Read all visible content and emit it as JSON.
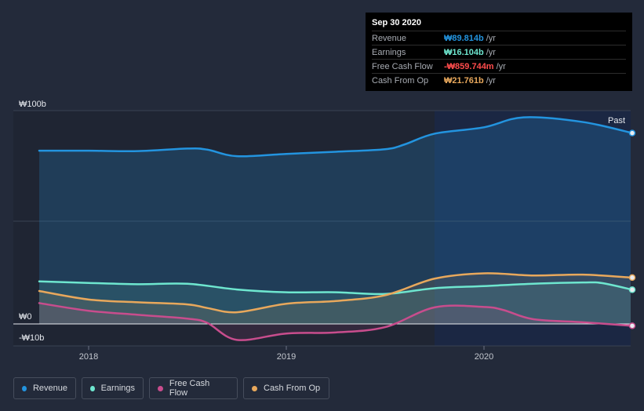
{
  "tooltip": {
    "date": "Sep 30 2020",
    "rows": [
      {
        "label": "Revenue",
        "value": "₩89.814b",
        "unit": "/yr",
        "color": "#2394df"
      },
      {
        "label": "Earnings",
        "value": "₩16.104b",
        "unit": "/yr",
        "color": "#6ee6cf"
      },
      {
        "label": "Free Cash Flow",
        "value": "-₩859.744m",
        "unit": "/yr",
        "color": "#ff4c4c"
      },
      {
        "label": "Cash From Op",
        "value": "₩21.761b",
        "unit": "/yr",
        "color": "#e8a85c"
      }
    ]
  },
  "legend": {
    "items": [
      {
        "label": "Revenue",
        "color": "#2394df"
      },
      {
        "label": "Earnings",
        "color": "#6ee6cf"
      },
      {
        "label": "Free Cash Flow",
        "color": "#c84d8d"
      },
      {
        "label": "Cash From Op",
        "color": "#e8a85c"
      }
    ]
  },
  "chart_data": {
    "type": "area",
    "y_unit": "KRW billions",
    "ylim": [
      -10,
      100
    ],
    "xlim": [
      2017.6,
      2020.8
    ],
    "y_tick_labels": [
      {
        "value": 100,
        "label": "₩100b"
      },
      {
        "value": 0,
        "label": "₩0"
      },
      {
        "value": -10,
        "label": "-₩10b"
      }
    ],
    "x_tick_labels": [
      {
        "value": 2018,
        "label": "2018"
      },
      {
        "value": 2019,
        "label": "2019"
      },
      {
        "value": 2020,
        "label": "2020"
      }
    ],
    "past_label": "Past",
    "highlight_start": 2019.75,
    "series": [
      {
        "name": "Revenue",
        "color": "#2394df",
        "fill": true,
        "points": [
          [
            2017.75,
            81.5
          ],
          [
            2018,
            81.5
          ],
          [
            2018.25,
            81.3
          ],
          [
            2018.5,
            82.5
          ],
          [
            2018.6,
            82
          ],
          [
            2018.75,
            78.9
          ],
          [
            2019,
            80
          ],
          [
            2019.25,
            81
          ],
          [
            2019.5,
            82.2
          ],
          [
            2019.6,
            84.5
          ],
          [
            2019.75,
            89.5
          ],
          [
            2020,
            92.5
          ],
          [
            2020.2,
            97.2
          ],
          [
            2020.5,
            95
          ],
          [
            2020.75,
            89.8
          ]
        ]
      },
      {
        "name": "Earnings",
        "color": "#6ee6cf",
        "fill": true,
        "points": [
          [
            2017.75,
            20
          ],
          [
            2018,
            19.3
          ],
          [
            2018.25,
            18.7
          ],
          [
            2018.5,
            18.9
          ],
          [
            2018.75,
            16.2
          ],
          [
            2019,
            14.9
          ],
          [
            2019.25,
            14.9
          ],
          [
            2019.5,
            14.1
          ],
          [
            2019.75,
            16.8
          ],
          [
            2020,
            17.8
          ],
          [
            2020.25,
            18.9
          ],
          [
            2020.5,
            19.5
          ],
          [
            2020.6,
            19.2
          ],
          [
            2020.75,
            16.1
          ]
        ]
      },
      {
        "name": "Free Cash Flow",
        "color": "#c84d8d",
        "fill": true,
        "points": [
          [
            2017.75,
            9.8
          ],
          [
            2018,
            6.2
          ],
          [
            2018.25,
            4.3
          ],
          [
            2018.5,
            2.5
          ],
          [
            2018.6,
            0.5
          ],
          [
            2018.75,
            -7.5
          ],
          [
            2019,
            -4.5
          ],
          [
            2019.25,
            -4
          ],
          [
            2019.5,
            -1.5
          ],
          [
            2019.75,
            7.8
          ],
          [
            2020,
            8
          ],
          [
            2020.1,
            6.5
          ],
          [
            2020.25,
            2.2
          ],
          [
            2020.5,
            0.8
          ],
          [
            2020.75,
            -0.86
          ]
        ]
      },
      {
        "name": "Cash From Op",
        "color": "#e8a85c",
        "fill": true,
        "points": [
          [
            2017.75,
            15.5
          ],
          [
            2018,
            11.5
          ],
          [
            2018.25,
            10.2
          ],
          [
            2018.5,
            9.2
          ],
          [
            2018.6,
            7.5
          ],
          [
            2018.75,
            5.5
          ],
          [
            2019,
            9.5
          ],
          [
            2019.25,
            10.8
          ],
          [
            2019.5,
            13.5
          ],
          [
            2019.75,
            21.3
          ],
          [
            2020,
            23.8
          ],
          [
            2020.25,
            22.8
          ],
          [
            2020.5,
            23.2
          ],
          [
            2020.75,
            21.8
          ]
        ]
      }
    ]
  }
}
